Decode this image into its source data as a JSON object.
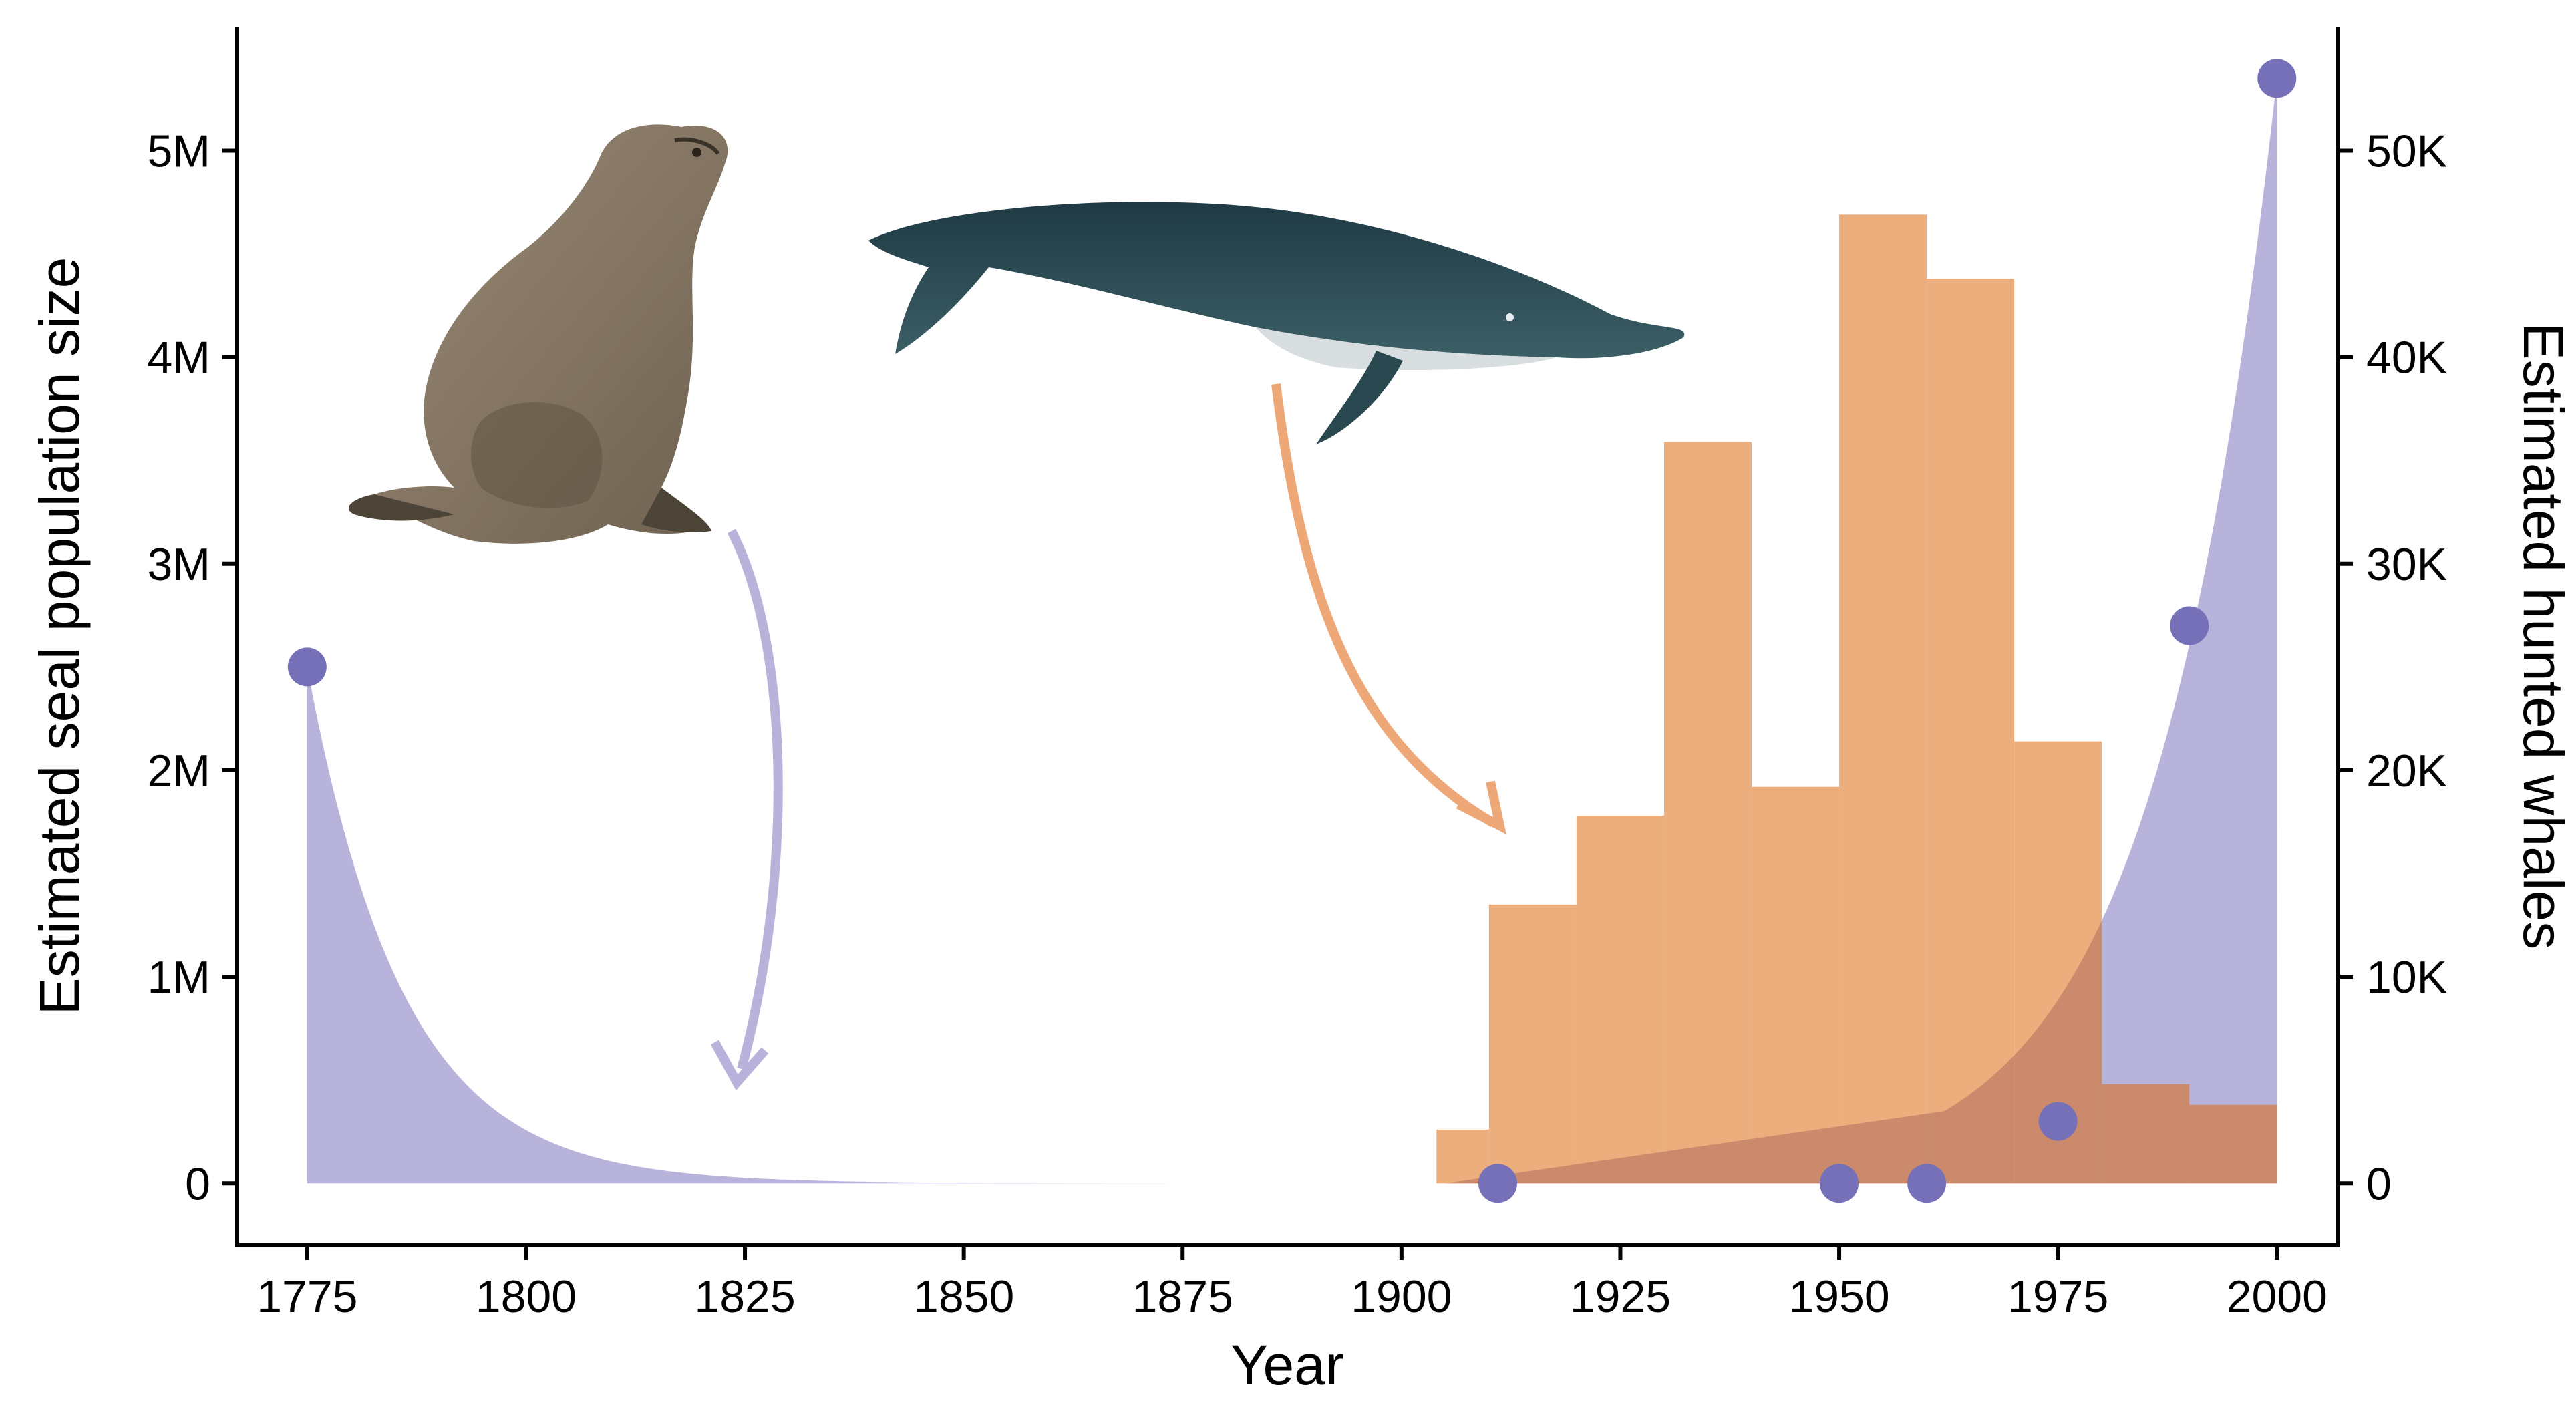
{
  "chart_data": {
    "type": "area+bar+scatter",
    "xlabel": "Year",
    "ylabel_left": "Estimated seal population size",
    "ylabel_right": "Estimated hunted whales",
    "xlim": [
      1767,
      2007
    ],
    "ylim_left": [
      -300000,
      5600000
    ],
    "ylim_right": [
      -3000,
      56000
    ],
    "x_ticks": [
      {
        "value": 1775,
        "label": "1775"
      },
      {
        "value": 1800,
        "label": "1800"
      },
      {
        "value": 1825,
        "label": "1825"
      },
      {
        "value": 1850,
        "label": "1850"
      },
      {
        "value": 1875,
        "label": "1875"
      },
      {
        "value": 1900,
        "label": "1900"
      },
      {
        "value": 1925,
        "label": "1925"
      },
      {
        "value": 1950,
        "label": "1950"
      },
      {
        "value": 1975,
        "label": "1975"
      },
      {
        "value": 2000,
        "label": "2000"
      }
    ],
    "y_ticks_left": [
      {
        "value": 0,
        "label": "0"
      },
      {
        "value": 1000000,
        "label": "1M"
      },
      {
        "value": 2000000,
        "label": "2M"
      },
      {
        "value": 3000000,
        "label": "3M"
      },
      {
        "value": 4000000,
        "label": "4M"
      },
      {
        "value": 5000000,
        "label": "5M"
      }
    ],
    "y_ticks_right": [
      {
        "value": 0,
        "label": "0"
      },
      {
        "value": 10000,
        "label": "10K"
      },
      {
        "value": 20000,
        "label": "20K"
      },
      {
        "value": 30000,
        "label": "30K"
      },
      {
        "value": 40000,
        "label": "40K"
      },
      {
        "value": 50000,
        "label": "50K"
      }
    ],
    "seal_points": [
      {
        "year": 1775,
        "population": 2500000
      },
      {
        "year": 1911,
        "population": 0
      },
      {
        "year": 1950,
        "population": 0
      },
      {
        "year": 1960,
        "population": 0
      },
      {
        "year": 1975,
        "population": 300000
      },
      {
        "year": 1990,
        "population": 2700000
      },
      {
        "year": 2000,
        "population": 5350000
      }
    ],
    "whale_bars": [
      {
        "start": 1904,
        "end": 1910,
        "whales": 2600
      },
      {
        "start": 1910,
        "end": 1920,
        "whales": 13500
      },
      {
        "start": 1920,
        "end": 1930,
        "whales": 17800
      },
      {
        "start": 1930,
        "end": 1940,
        "whales": 35900
      },
      {
        "start": 1940,
        "end": 1950,
        "whales": 19200
      },
      {
        "start": 1950,
        "end": 1960,
        "whales": 46900
      },
      {
        "start": 1960,
        "end": 1970,
        "whales": 43800
      },
      {
        "start": 1970,
        "end": 1980,
        "whales": 21400
      },
      {
        "start": 1980,
        "end": 1990,
        "whales": 4800
      },
      {
        "start": 1990,
        "end": 2000,
        "whales": 3800
      }
    ],
    "colors": {
      "seal_area": "#b7b3da",
      "seal_point": "#7570b8",
      "whale_bar": "#ecae7d",
      "overlap": "#cb8a6c",
      "seal_arrow": "#b7b3da",
      "whale_arrow": "#eea878",
      "seal_illustration": "#8a7a66",
      "whale_illustration": "#2c4a52"
    },
    "illustrations": [
      "seal-illustration",
      "whale-illustration"
    ]
  }
}
